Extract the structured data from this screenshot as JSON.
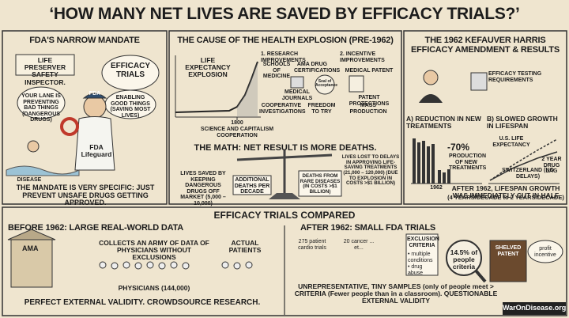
{
  "title": "‘HOW MANY NET LIVES ARE SAVED BY EFFICACY TRIALS?’",
  "mandate": {
    "heading": "FDA'S NARROW MANDATE",
    "sign": "LIFE PRESERVER SAFETY INSPECTOR.",
    "bubble_left": "YOUR LANE IS PREVENTING BAD THINGS (DANGEROUS DRUGS)",
    "bubble_title": "EFFICACY TRIALS",
    "bubble_right": "ENABLING GOOD THINGS (SAVING MOST LIVES)",
    "cap": "FDA",
    "shirt": "FDA Lifeguard",
    "disease": "DISEASE",
    "footer": "THE MANDATE IS VERY SPECIFIC: JUST PREVENT UNSAFE DRUGS GETTING APPROVED."
  },
  "cause": {
    "heading": "THE CAUSE OF THE HEALTH EXPLOSION (PRE-1962)",
    "chart_label": "LIFE EXPECTANCY EXPLOSION",
    "year": "1800",
    "chart_caption": "SCIENCE AND CAPITALISM COOPERATION",
    "research_heading": "1. RESEARCH IMPROVEMENTS",
    "research_items": [
      "SCHOOLS OF MEDICINE",
      "AMA DRUG CERTIFICATIONS",
      "MEDICAL JOURNALS",
      "Seal of Acceptance",
      "COOPERATIVE INVESTIGATIONS",
      "FREEDOM TO TRY"
    ],
    "incentive_heading": "2. INCENTIVE IMPROVEMENTS",
    "incentive_items": [
      "MEDICAL PATENT",
      "PATENT PROTECTIONS",
      "MASS PRODUCTION"
    ]
  },
  "math": {
    "heading": "THE MATH: NET RESULT IS MORE DEATHS.",
    "left": "LIVES SAVED BY KEEPING DANGEROUS DRUGS OFF MARKET (5,000 – 10,000)",
    "left_box": "ADDITIONAL DEATHS PER DECADE",
    "right_box": "DEATHS FROM RARE DISEASES (IN COSTS >$1 BILLION)",
    "right": "LIVES LOST TO DELAYS IN APPROVING LIFE-SAVING TREATMENTS (21,000 – 120,000) (DUE TO EXPLOSION IN COSTS >$1 BILLION)"
  },
  "amendment": {
    "heading": "THE 1962 KEFAUVER HARRIS EFFICACY AMENDMENT & RESULTS",
    "requirements": "EFFICACY TESTING REQUIREMENTS",
    "a_heading": "A) REDUCTION IN NEW TREATMENTS",
    "b_heading": "B) SLOWED GROWTH IN LIFESPAN",
    "drop": "-70%",
    "drop_label": "PRODUCTION OF NEW TREATMENTS",
    "year": "1962",
    "us_label": "U.S. LIFE EXPECTANCY",
    "lag_label": "2 YEAR DRUG LAG",
    "swiss_label": "SWITZERLAND (NO DELAYS)",
    "footer": "AFTER 1962, LIFESPAN GROWTH WAS IMMEDIATELY CUT IN HALF",
    "footer_sub": "(4 YEARS/DECADE to 2 YEARS/DECADE)"
  },
  "compared": {
    "heading": "EFFICACY TRIALS COMPARED",
    "before": {
      "heading": "BEFORE 1962: LARGE REAL-WORLD DATA",
      "building": "AMA",
      "collects": "COLLECTS AN ARMY OF DATA OF PHYSICIANS WITHOUT EXCLUSIONS",
      "patients": "ACTUAL PATIENTS",
      "physicians": "PHYSICIANS (144,000)",
      "footer": "PERFECT EXTERNAL VALIDITY. CROWDSOURCE RESEARCH."
    },
    "after": {
      "heading": "AFTER 1962: SMALL FDA TRIALS",
      "cardio": "275 patient cardio trials",
      "cancer": "20 cancer ... et...",
      "criteria_title": "EXCLUSION CRITERIA",
      "criteria_items": [
        "• multiple conditions",
        "• drug abuse",
        "..."
      ],
      "lens": "14.5% of people criteria",
      "shelved": "SHELVED PATENT",
      "profit": "profit incentive",
      "footer": "UNREPRESENTATIVE, TINY SAMPLES (only of people meet > CRITERIA (Fewer people than in a classroom). QUESTIONABLE EXTERNAL VALIDITY"
    }
  },
  "watermark": "WarOnDisease.org"
}
